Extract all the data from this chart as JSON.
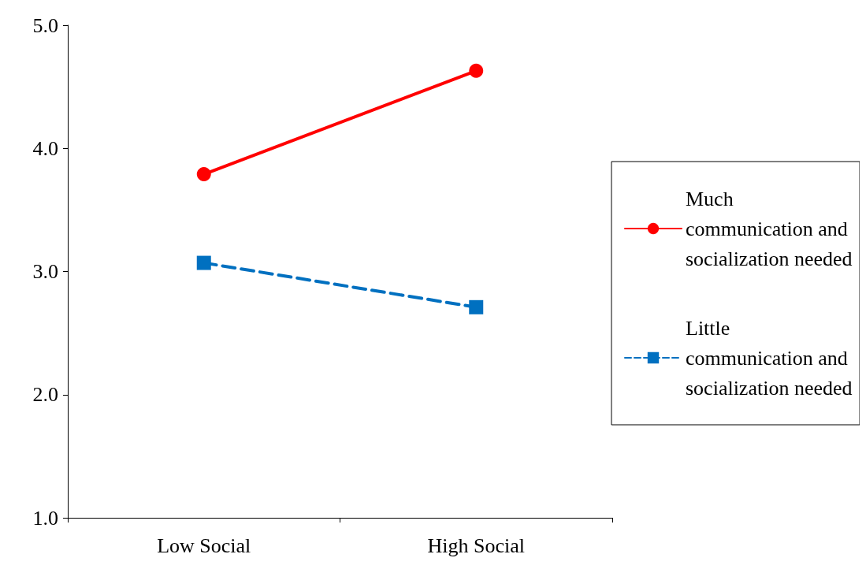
{
  "chart_data": {
    "type": "line",
    "categories": [
      "Low Social",
      "High Social"
    ],
    "series": [
      {
        "name": "Much communication and socialization needed",
        "color": "#ff0000",
        "values": [
          3.79,
          4.63
        ],
        "marker": "circle",
        "line_style": "solid"
      },
      {
        "name": "Little communication and socialization needed",
        "color": "#0070c0",
        "values": [
          3.07,
          2.71
        ],
        "marker": "square",
        "line_style": "dashed"
      }
    ],
    "ylim": [
      1,
      5
    ],
    "yticks": [
      {
        "value": 1,
        "label": "1.0"
      },
      {
        "value": 2,
        "label": "2.0"
      },
      {
        "value": 3,
        "label": "3.0"
      },
      {
        "value": 4,
        "label": "4.0"
      },
      {
        "value": 5,
        "label": "5.0"
      }
    ],
    "grid": false,
    "legend": "right"
  }
}
